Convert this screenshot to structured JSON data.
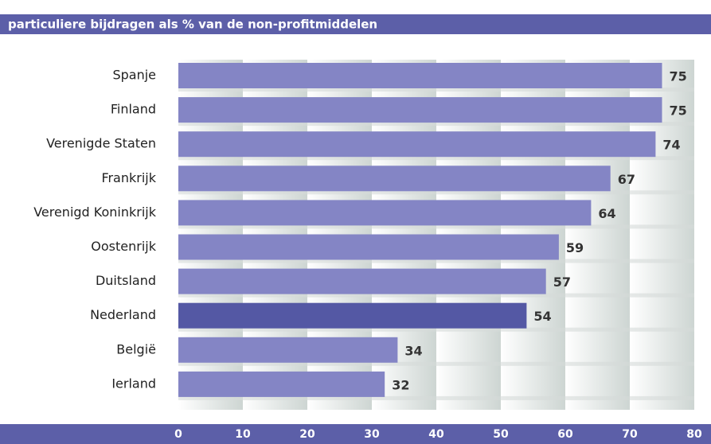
{
  "chart_data": {
    "type": "barh",
    "title": "particuliere bijdragen als % van de non-profitmiddelen",
    "categories": [
      "Spanje",
      "Finland",
      "Verenigde Staten",
      "Frankrijk",
      "Verenigd Koninkrijk",
      "Oostenrijk",
      "Duitsland",
      "Nederland",
      "België",
      "Ierland"
    ],
    "values": [
      75,
      75,
      74,
      67,
      64,
      59,
      57,
      54,
      34,
      32
    ],
    "colors": [
      "#8485c5",
      "#8485c5",
      "#8485c5",
      "#8485c5",
      "#8485c5",
      "#8485c5",
      "#8485c5",
      "#5458a4",
      "#8485c5",
      "#8485c5"
    ],
    "xlim": [
      0,
      80
    ],
    "xticks": [
      0,
      10,
      20,
      30,
      40,
      50,
      60,
      70,
      80
    ],
    "grid": true
  }
}
